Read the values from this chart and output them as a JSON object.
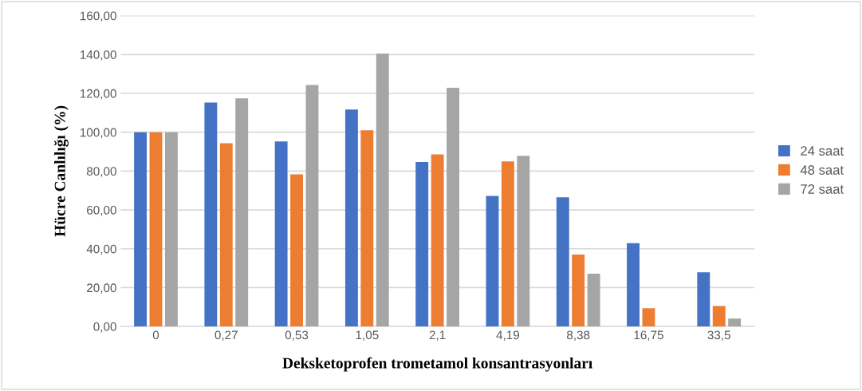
{
  "chart_data": {
    "type": "bar",
    "xlabel": "Deksketoprofen trometamol konsantrasyonları",
    "ylabel": "Hücre Canlılığı (%)",
    "categories": [
      "0",
      "0,27",
      "0,53",
      "1,05",
      "2,1",
      "4,19",
      "8,38",
      "16,75",
      "33,5"
    ],
    "series": [
      {
        "name": "24 saat",
        "color": "#4472c4",
        "values": [
          100,
          115.3,
          95.2,
          111.7,
          84.7,
          67.2,
          66.5,
          42.9,
          27.9
        ]
      },
      {
        "name": "48 saat",
        "color": "#ed7d31",
        "values": [
          100,
          94.3,
          78.3,
          101,
          88.6,
          85,
          37.0,
          9.4,
          10.5
        ]
      },
      {
        "name": "72 saat",
        "color": "#a5a5a5",
        "values": [
          100,
          117.4,
          124.3,
          140.4,
          122.9,
          87.9,
          27.2,
          null,
          4.1
        ]
      }
    ],
    "ylim": [
      0,
      160
    ],
    "yticks": [
      {
        "value": 0,
        "label": "0,00"
      },
      {
        "value": 20,
        "label": "20,00"
      },
      {
        "value": 40,
        "label": "40,00"
      },
      {
        "value": 60,
        "label": "60,00"
      },
      {
        "value": 80,
        "label": "80,00"
      },
      {
        "value": 100,
        "label": "100,00"
      },
      {
        "value": 120,
        "label": "120,00"
      },
      {
        "value": 140,
        "label": "140,00"
      },
      {
        "value": 160,
        "label": "160,00"
      }
    ],
    "grid": "y",
    "legend": "right"
  }
}
